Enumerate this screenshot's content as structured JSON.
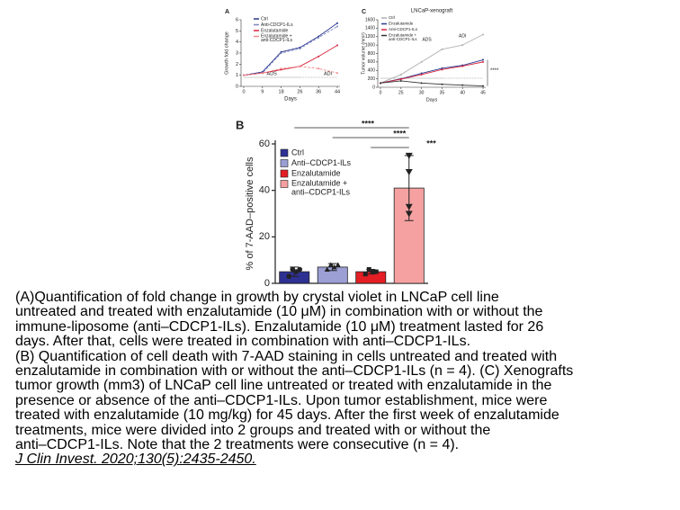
{
  "chart_data": [
    {
      "type": "line",
      "panel": "A",
      "xlabel": "Days",
      "ylabel": "Growth fold change",
      "categories": [
        "0",
        "9",
        "18",
        "26",
        "36",
        "44"
      ],
      "ylim": [
        0,
        6
      ],
      "yticks": [
        0,
        1,
        2,
        3,
        4,
        5,
        6
      ],
      "annotations": [
        "ADS",
        "ADI"
      ],
      "series": [
        {
          "name": "Ctrl",
          "color": "#2b3990",
          "dash": false,
          "values": [
            1,
            1.3,
            3.1,
            3.5,
            4.5,
            5.7
          ]
        },
        {
          "name": "Anti-CDCP1-ILs",
          "color": "#7b86c2",
          "dash": true,
          "values": [
            1,
            1.2,
            3.0,
            3.4,
            4.4,
            5.4
          ]
        },
        {
          "name": "Enzalutamide",
          "color": "#d7263d",
          "dash": false,
          "values": [
            1,
            1.2,
            1.5,
            1.8,
            2.7,
            3.7
          ]
        },
        {
          "name": "Enzalutamide +\nanti-CDCP1-ILs",
          "color": "#f08a8a",
          "dash": true,
          "values": [
            1,
            1.2,
            1.6,
            1.8,
            1.6,
            1.2
          ]
        }
      ]
    },
    {
      "type": "line",
      "panel": "C",
      "title": "LNCaP-xenograft",
      "xlabel": "Days",
      "ylabel": "Tumor volume (mm³)",
      "categories": [
        "0",
        "25",
        "30",
        "35",
        "40",
        "45"
      ],
      "ylim": [
        0,
        1600
      ],
      "yticks": [
        0,
        200,
        400,
        600,
        800,
        1000,
        1200,
        1400,
        1600
      ],
      "annotations": [
        "ADS",
        "ADI",
        "****"
      ],
      "series": [
        {
          "name": "Ctrl",
          "color": "#b0b0b0",
          "dash": false,
          "values": [
            100,
            300,
            600,
            900,
            1000,
            1250
          ]
        },
        {
          "name": "Enzalutamide",
          "color": "#2b3990",
          "dash": false,
          "values": [
            100,
            200,
            330,
            450,
            520,
            650
          ]
        },
        {
          "name": "Anti-CDCP1-ILs",
          "color": "#d7263d",
          "dash": false,
          "values": [
            100,
            190,
            300,
            420,
            500,
            600
          ]
        },
        {
          "name": "Enzalutamide +\nanti-CDCP1-ILs",
          "color": "#333333",
          "dash": false,
          "values": [
            100,
            150,
            100,
            70,
            50,
            30
          ]
        }
      ]
    },
    {
      "type": "bar",
      "panel": "B",
      "ylabel": "% of 7-AAD–positive cells",
      "categories": [
        "Ctrl",
        "Anti–CDCP1-ILs",
        "Enzalutamide",
        "Enzalutamide +\nanti–CDCP1-ILs"
      ],
      "colors": [
        "#2e3192",
        "#9b9fd4",
        "#e31e24",
        "#f6a1a1"
      ],
      "values": [
        5,
        7,
        5,
        41
      ],
      "errors": [
        2,
        1.5,
        1,
        14
      ],
      "points": [
        [
          3,
          6,
          5,
          6
        ],
        [
          6,
          8,
          7,
          8
        ],
        [
          4,
          6,
          5,
          5
        ],
        [
          55,
          48,
          33,
          30
        ]
      ],
      "ylim": [
        0,
        60
      ],
      "yticks": [
        0,
        20,
        40,
        60
      ],
      "annotations": [
        "****",
        "****",
        "***"
      ]
    }
  ],
  "caption_lines": [
    "(A)Quantification of fold change in growth by crystal violet in LNCaP cell line",
    "untreated and treated with enzalutamide (10 μM) in combination with or without the",
    "immune-liposome (anti–CDCP1-ILs). Enzalutamide (10 μM) treatment lasted for 26",
    "days. After that, cells were treated in combination with anti–CDCP1-ILs.",
    "(B) Quantification of cell death with 7-AAD staining in cells untreated and treated with",
    "enzalutamide in combination with or without the anti–CDCP1-ILs (n = 4). (C) Xenografts",
    "tumor growth (mm3) of LNCaP cell line untreated or treated with enzalutamide in the",
    "presence or absence of the anti–CDCP1-ILs. Upon tumor establishment, mice were",
    "treated with enzalutamide (10 mg/kg) for 45 days. After the first week of enzalutamide",
    "treatments, mice were divided into 2 groups and treated with or without the",
    "anti–CDCP1-ILs. Note that the 2 treatments were consecutive (n = 4)."
  ],
  "citation": "J Clin Invest. 2020;130(5):2435-2450."
}
